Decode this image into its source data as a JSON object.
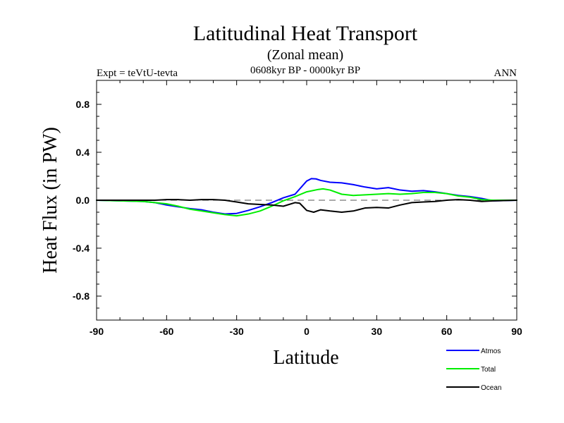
{
  "chart_data": {
    "type": "line",
    "title": "Latitudinal Heat Transport",
    "subtitle": "(Zonal mean)",
    "period": "0608kyr BP - 0000kyr BP",
    "expt_label": "Expt = teVtU-tevta",
    "season": "ANN",
    "xlabel": "Latitude",
    "ylabel": "Heat Flux (in PW)",
    "xlim": [
      -90,
      90
    ],
    "ylim": [
      -1.0,
      1.0
    ],
    "x_ticks": [
      -90,
      -60,
      -30,
      0,
      30,
      60,
      90
    ],
    "x_tick_labels": [
      "-90",
      "-60",
      "-30",
      "0",
      "30",
      "60",
      "90"
    ],
    "y_ticks": [
      -0.8,
      -0.4,
      0.0,
      0.4,
      0.8
    ],
    "y_tick_labels": [
      "-0.8",
      "-0.4",
      "0.0",
      "0.4",
      "0.8"
    ],
    "zero_line": true,
    "grid": false,
    "legend_position": "bottom-right",
    "series": [
      {
        "name": "Atmos",
        "color": "#0000ff",
        "x": [
          -90,
          -80,
          -70,
          -65,
          -60,
          -55,
          -50,
          -45,
          -40,
          -35,
          -30,
          -25,
          -20,
          -15,
          -10,
          -5,
          0,
          2,
          4,
          6,
          10,
          15,
          20,
          25,
          30,
          35,
          40,
          45,
          50,
          55,
          60,
          65,
          70,
          75,
          80,
          90
        ],
        "y": [
          0.0,
          -0.005,
          -0.01,
          -0.02,
          -0.04,
          -0.055,
          -0.07,
          -0.08,
          -0.1,
          -0.115,
          -0.11,
          -0.085,
          -0.055,
          -0.02,
          0.02,
          0.05,
          0.16,
          0.18,
          0.178,
          0.165,
          0.15,
          0.145,
          0.13,
          0.11,
          0.095,
          0.105,
          0.085,
          0.075,
          0.08,
          0.07,
          0.055,
          0.04,
          0.03,
          0.015,
          -0.005,
          0.0
        ]
      },
      {
        "name": "Total",
        "color": "#00ee00",
        "x": [
          -90,
          -80,
          -70,
          -65,
          -60,
          -55,
          -50,
          -45,
          -40,
          -35,
          -30,
          -25,
          -20,
          -15,
          -10,
          -5,
          0,
          5,
          7,
          10,
          15,
          20,
          25,
          30,
          35,
          40,
          45,
          50,
          55,
          60,
          65,
          70,
          75,
          80,
          90
        ],
        "y": [
          0.0,
          -0.005,
          -0.01,
          -0.02,
          -0.03,
          -0.05,
          -0.075,
          -0.09,
          -0.105,
          -0.12,
          -0.13,
          -0.115,
          -0.09,
          -0.05,
          -0.005,
          0.03,
          0.07,
          0.09,
          0.095,
          0.085,
          0.05,
          0.04,
          0.045,
          0.05,
          0.055,
          0.05,
          0.055,
          0.065,
          0.065,
          0.055,
          0.035,
          0.025,
          0.005,
          0.0,
          0.0
        ]
      },
      {
        "name": "Ocean",
        "color": "#000000",
        "x": [
          -90,
          -80,
          -70,
          -65,
          -60,
          -55,
          -50,
          -45,
          -40,
          -35,
          -30,
          -25,
          -20,
          -15,
          -10,
          -5,
          -3,
          0,
          3,
          6,
          10,
          15,
          20,
          25,
          30,
          35,
          40,
          45,
          50,
          55,
          60,
          65,
          70,
          75,
          80,
          90
        ],
        "y": [
          0.0,
          0.0,
          0.0,
          0.0,
          0.005,
          0.005,
          0.0,
          0.005,
          0.005,
          0.0,
          -0.015,
          -0.03,
          -0.035,
          -0.04,
          -0.05,
          -0.02,
          -0.025,
          -0.085,
          -0.1,
          -0.08,
          -0.09,
          -0.1,
          -0.09,
          -0.065,
          -0.06,
          -0.065,
          -0.04,
          -0.02,
          -0.015,
          -0.01,
          0.0,
          0.005,
          0.0,
          -0.01,
          -0.005,
          0.0
        ]
      }
    ]
  }
}
